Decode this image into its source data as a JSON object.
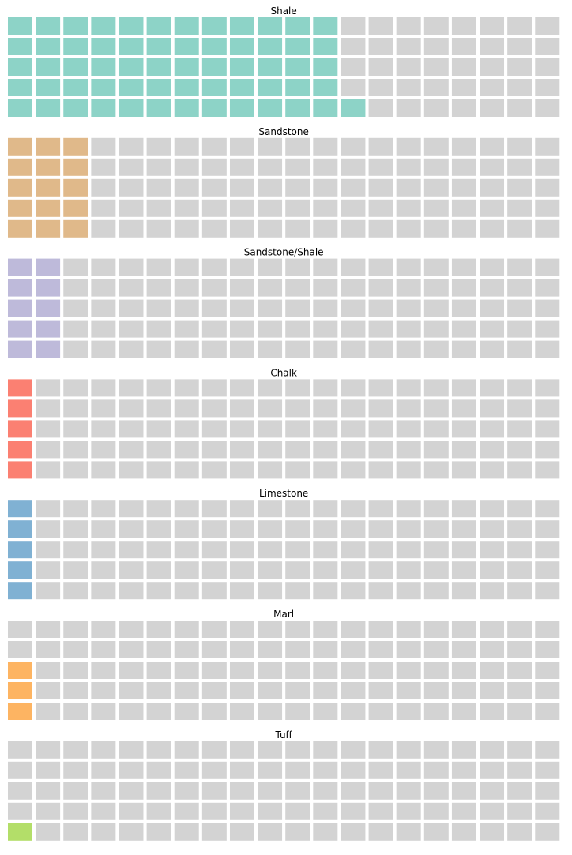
{
  "chart_data": {
    "type": "waffle",
    "rows": 5,
    "columns": 20,
    "empty_color": "#d3d3d3",
    "fill_order": "column-major, bottom-to-top, left-to-right",
    "panels": [
      {
        "title": "Shale",
        "filled": 61,
        "color": "#8dd3c7"
      },
      {
        "title": "Sandstone",
        "filled": 15,
        "color": "#e0b98a"
      },
      {
        "title": "Sandstone/Shale",
        "filled": 10,
        "color": "#bebada"
      },
      {
        "title": "Chalk",
        "filled": 5,
        "color": "#fb8072"
      },
      {
        "title": "Limestone",
        "filled": 5,
        "color": "#80b1d3"
      },
      {
        "title": "Marl",
        "filled": 3,
        "color": "#fdb462"
      },
      {
        "title": "Tuff",
        "filled": 1,
        "color": "#b3de69"
      }
    ]
  }
}
